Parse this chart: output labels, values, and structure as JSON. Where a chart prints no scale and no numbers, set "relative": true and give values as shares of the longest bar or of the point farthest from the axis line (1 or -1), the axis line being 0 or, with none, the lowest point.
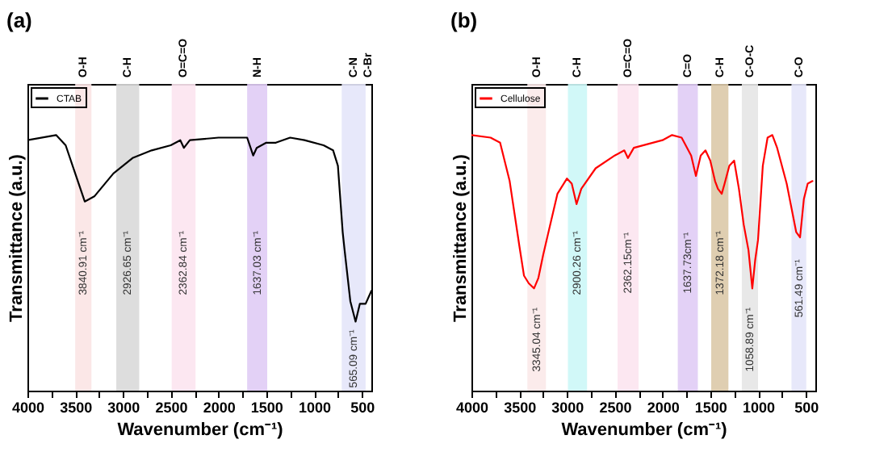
{
  "chart_data": [
    {
      "type": "line",
      "title": "(a)",
      "xlabel": "Wavenumber (cm⁻¹)",
      "ylabel": "Transmittance (a.u.)",
      "relative": true,
      "legend": "top left",
      "xlim": [
        4000,
        400
      ],
      "xticks": [
        4000,
        {
          "value": 3750,
          "label": null
        },
        3500,
        {
          "value": 3250,
          "label": null
        },
        3000,
        {
          "value": 2750,
          "label": null
        },
        2500,
        {
          "value": 2250,
          "label": null
        },
        2000,
        {
          "value": 1750,
          "label": null
        },
        1500,
        {
          "value": 1250,
          "label": null
        },
        1000,
        {
          "value": 750,
          "label": null
        },
        500
      ],
      "series": [
        {
          "name": "CTAB",
          "color": "#000000",
          "x": [
            4000,
            3700,
            3600,
            3500,
            3400,
            3300,
            3100,
            2900,
            2700,
            2500,
            2400,
            2362,
            2300,
            2000,
            1800,
            1700,
            1637,
            1600,
            1500,
            1400,
            1250,
            1100,
            900,
            800,
            750,
            700,
            680,
            620,
            565,
            520,
            460,
            400
          ],
          "values": [
            0.98,
            1.0,
            0.96,
            0.85,
            0.74,
            0.76,
            0.85,
            0.91,
            0.94,
            0.96,
            0.98,
            0.95,
            0.98,
            0.99,
            0.99,
            0.99,
            0.92,
            0.95,
            0.97,
            0.97,
            0.99,
            0.98,
            0.96,
            0.94,
            0.88,
            0.62,
            0.55,
            0.35,
            0.27,
            0.34,
            0.34,
            0.39
          ]
        }
      ],
      "bands": [
        {
          "axis": "x",
          "from": 3500,
          "to": 3330,
          "label": "O-H",
          "color": "#fbe4e4"
        },
        {
          "axis": "x",
          "from": 3070,
          "to": 2830,
          "label": "C-H",
          "color": "#d9d9d9"
        },
        {
          "axis": "x",
          "from": 2490,
          "to": 2240,
          "label": "O=C=O",
          "color": "#fce4f0"
        },
        {
          "axis": "x",
          "from": 1700,
          "to": 1490,
          "label": "N-H",
          "color": "#e0ccf5"
        },
        {
          "axis": "x",
          "from": 710,
          "to": 460,
          "label": "C-N\nC-Br",
          "color": "#e4e6fa"
        }
      ],
      "annotations": [
        "3840.91 cm⁻¹",
        "2926.65 cm⁻¹",
        "2362.84 cm⁻¹",
        "1637.03 cm⁻¹",
        "565.09 cm⁻¹"
      ]
    },
    {
      "type": "line",
      "title": "(b)",
      "xlabel": "Wavenumber (cm⁻¹)",
      "ylabel": "Transmittance (a.u.)",
      "relative": true,
      "legend": "top left",
      "xlim": [
        4000,
        400
      ],
      "xticks": [
        4000,
        {
          "value": 3750,
          "label": null
        },
        3500,
        {
          "value": 3250,
          "label": null
        },
        3000,
        {
          "value": 2750,
          "label": null
        },
        2500,
        {
          "value": 2250,
          "label": null
        },
        2000,
        {
          "value": 1750,
          "label": null
        },
        1500,
        {
          "value": 1250,
          "label": null
        },
        1000,
        {
          "value": 750,
          "label": null
        },
        500
      ],
      "series": [
        {
          "name": "Cellulose",
          "color": "#ff0000",
          "x": [
            4000,
            3800,
            3700,
            3600,
            3500,
            3450,
            3400,
            3345,
            3300,
            3250,
            3200,
            3100,
            3000,
            2950,
            2900,
            2850,
            2700,
            2500,
            2400,
            2362,
            2300,
            2000,
            1900,
            1800,
            1700,
            1650,
            1600,
            1550,
            1500,
            1450,
            1420,
            1380,
            1350,
            1300,
            1250,
            1200,
            1150,
            1100,
            1060,
            1030,
            1000,
            950,
            900,
            850,
            800,
            700,
            600,
            560,
            520,
            480,
            430
          ],
          "values": [
            1.0,
            0.99,
            0.97,
            0.82,
            0.57,
            0.45,
            0.42,
            0.4,
            0.44,
            0.53,
            0.61,
            0.77,
            0.83,
            0.81,
            0.73,
            0.79,
            0.87,
            0.92,
            0.94,
            0.91,
            0.95,
            0.98,
            1.0,
            0.99,
            0.92,
            0.84,
            0.92,
            0.94,
            0.9,
            0.82,
            0.79,
            0.77,
            0.81,
            0.88,
            0.9,
            0.79,
            0.65,
            0.55,
            0.4,
            0.51,
            0.59,
            0.88,
            0.99,
            1.0,
            0.95,
            0.81,
            0.62,
            0.6,
            0.75,
            0.81,
            0.82
          ]
        }
      ],
      "bands": [
        {
          "axis": "x",
          "from": 3415,
          "to": 3220,
          "label": "O-H",
          "color": "#fbe9e9"
        },
        {
          "axis": "x",
          "from": 2990,
          "to": 2790,
          "label": "C-H",
          "color": "#ccf7f7"
        },
        {
          "axis": "x",
          "from": 2470,
          "to": 2250,
          "label": "O=C=O",
          "color": "#fce4f0"
        },
        {
          "axis": "x",
          "from": 1840,
          "to": 1630,
          "label": "C=O",
          "color": "#e0ccf5"
        },
        {
          "axis": "x",
          "from": 1490,
          "to": 1310,
          "label": "C-H",
          "color": "#dcc9a8"
        },
        {
          "axis": "x",
          "from": 1170,
          "to": 1000,
          "label": "C-O-C",
          "color": "#e6e6e6"
        },
        {
          "axis": "x",
          "from": 650,
          "to": 495,
          "label": "C-O",
          "color": "#e4e6fa"
        }
      ],
      "annotations": [
        "3345.04 cm⁻¹",
        "2900.26 cm⁻¹",
        "2362.15cm⁻¹",
        "1637.73cm⁻¹",
        "1372.18 cm⁻¹",
        "1058.89 cm⁻¹",
        "561.49 cm⁻¹"
      ]
    }
  ]
}
